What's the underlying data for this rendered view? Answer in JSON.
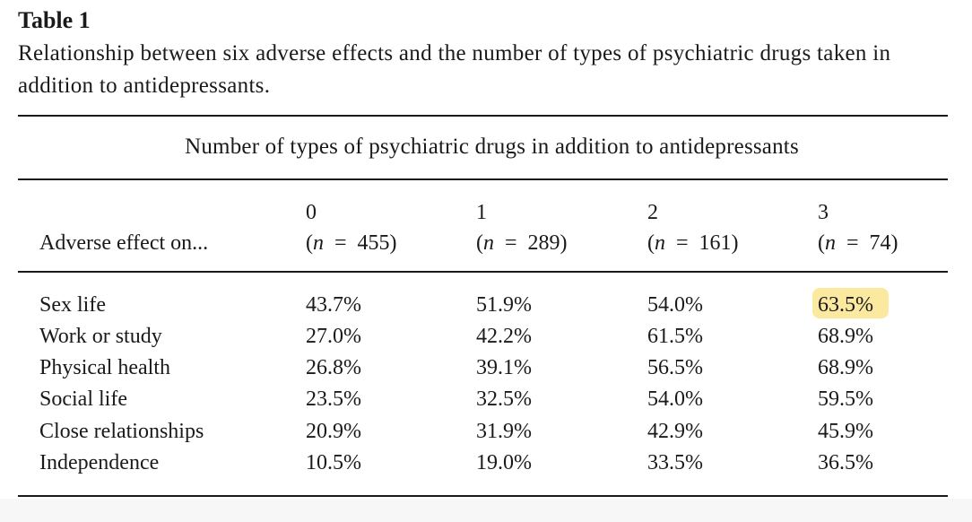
{
  "table_label": "Table 1",
  "caption": "Relationship between six adverse effects and the number of types of psychiatric drugs taken in addition to antidepressants.",
  "spanner_header": "Number of types of psychiatric drugs in addition to antidepressants",
  "row_header": "Adverse effect on...",
  "columns": [
    {
      "num": "0",
      "n_label": "n",
      "n_value": "455"
    },
    {
      "num": "1",
      "n_label": "n",
      "n_value": "289"
    },
    {
      "num": "2",
      "n_label": "n",
      "n_value": "161"
    },
    {
      "num": "3",
      "n_label": "n",
      "n_value": "74"
    }
  ],
  "rows": [
    {
      "label": "Sex life",
      "values": [
        "43.7%",
        "51.9%",
        "54.0%",
        "63.5%"
      ]
    },
    {
      "label": "Work or study",
      "values": [
        "27.0%",
        "42.2%",
        "61.5%",
        "68.9%"
      ]
    },
    {
      "label": "Physical health",
      "values": [
        "26.8%",
        "39.1%",
        "56.5%",
        "68.9%"
      ]
    },
    {
      "label": "Social life",
      "values": [
        "23.5%",
        "32.5%",
        "54.0%",
        "59.5%"
      ]
    },
    {
      "label": "Close relationships",
      "values": [
        "20.9%",
        "31.9%",
        "42.9%",
        "45.9%"
      ]
    },
    {
      "label": "Independence",
      "values": [
        "10.5%",
        "19.0%",
        "33.5%",
        "36.5%"
      ]
    }
  ],
  "highlight": {
    "row": 0,
    "col": 3,
    "color": "#fbe9a0"
  }
}
